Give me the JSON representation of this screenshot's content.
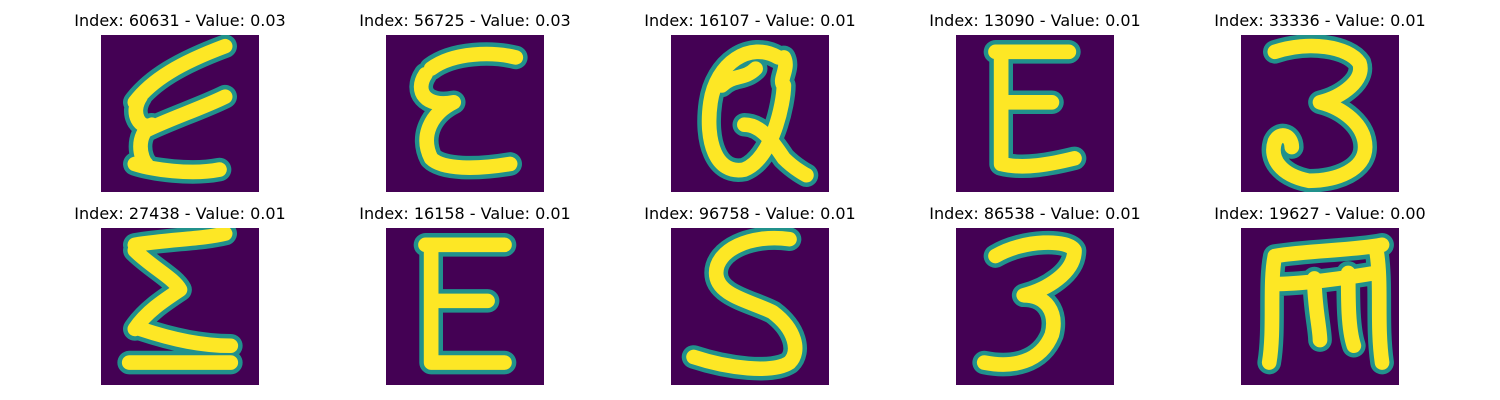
{
  "colors": {
    "background": "#440154",
    "stroke_edge": "#21918c",
    "stroke_core": "#fde725"
  },
  "chart_data": {
    "type": "image_grid",
    "rows": 2,
    "cols": 5,
    "colormap": "viridis",
    "panels": [
      {
        "title": "Index: 60631 - Value: 0.03",
        "index": 60631,
        "value": 0.03,
        "glyph": "Ɛ"
      },
      {
        "title": "Index: 56725 - Value: 0.03",
        "index": 56725,
        "value": 0.03,
        "glyph": "Ɛ"
      },
      {
        "title": "Index: 16107 - Value: 0.01",
        "index": 16107,
        "value": 0.01,
        "glyph": "α"
      },
      {
        "title": "Index: 13090 - Value: 0.01",
        "index": 13090,
        "value": 0.01,
        "glyph": "E"
      },
      {
        "title": "Index: 33336 - Value: 0.01",
        "index": 33336,
        "value": 0.01,
        "glyph": "3"
      },
      {
        "title": "Index: 27438 - Value: 0.01",
        "index": 27438,
        "value": 0.01,
        "glyph": "Σ"
      },
      {
        "title": "Index: 16158 - Value: 0.01",
        "index": 16158,
        "value": 0.01,
        "glyph": "E"
      },
      {
        "title": "Index: 96758 - Value: 0.01",
        "index": 96758,
        "value": 0.01,
        "glyph": "S"
      },
      {
        "title": "Index: 86538 - Value: 0.01",
        "index": 86538,
        "value": 0.01,
        "glyph": "3"
      },
      {
        "title": "Index: 19627 - Value: 0.00",
        "index": 19627,
        "value": 0.0,
        "glyph": "m"
      }
    ]
  }
}
